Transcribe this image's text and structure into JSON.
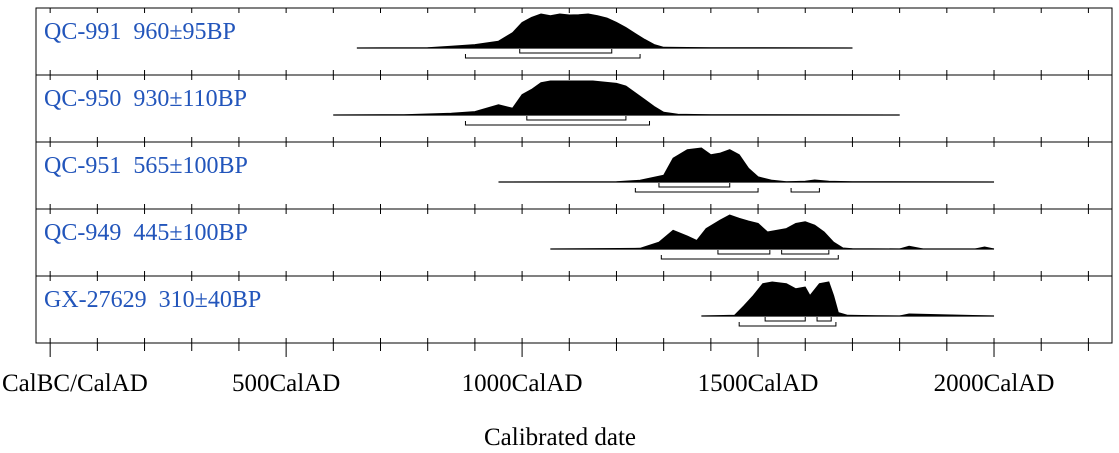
{
  "chart_data": {
    "type": "area",
    "xlabel": "Calibrated date",
    "xlim": [
      -30,
      2250
    ],
    "ticks": [
      {
        "value": 0,
        "label": "CalBC/CalAD"
      },
      {
        "value": 500,
        "label": "500CalAD"
      },
      {
        "value": 1000,
        "label": "1000CalAD"
      },
      {
        "value": 1500,
        "label": "1500CalAD"
      },
      {
        "value": 2000,
        "label": "2000CalAD"
      }
    ],
    "label_color": "#2255bb",
    "series": [
      {
        "name": "QC-991",
        "date": "960±95BP",
        "x": [
          650,
          800,
          850,
          900,
          950,
          980,
          1000,
          1020,
          1040,
          1060,
          1080,
          1100,
          1120,
          1140,
          1160,
          1180,
          1200,
          1220,
          1240,
          1260,
          1280,
          1300,
          1400,
          1700
        ],
        "y": [
          0,
          0.01,
          0.05,
          0.1,
          0.2,
          0.45,
          0.75,
          0.9,
          1.0,
          0.95,
          1.0,
          0.97,
          0.98,
          1.0,
          0.95,
          0.88,
          0.75,
          0.6,
          0.42,
          0.25,
          0.1,
          0.02,
          0.01,
          0
        ],
        "ranges": [
          [
            995,
            1190
          ]
        ],
        "ranges_outer": [
          [
            880,
            1250
          ]
        ]
      },
      {
        "name": "QC-950",
        "date": "930±110BP",
        "x": [
          600,
          750,
          850,
          900,
          950,
          980,
          1000,
          1020,
          1040,
          1060,
          1100,
          1150,
          1200,
          1220,
          1240,
          1260,
          1280,
          1300,
          1330,
          1400,
          1800
        ],
        "y": [
          0,
          0.01,
          0.05,
          0.1,
          0.3,
          0.2,
          0.6,
          0.75,
          0.95,
          1.0,
          1.0,
          1.0,
          0.93,
          0.85,
          0.65,
          0.45,
          0.25,
          0.08,
          0.02,
          0.01,
          0
        ],
        "ranges": [
          [
            1010,
            1220
          ]
        ],
        "ranges_outer": [
          [
            880,
            1270
          ]
        ]
      },
      {
        "name": "QC-951",
        "date": "565±100BP",
        "x": [
          950,
          1200,
          1250,
          1300,
          1320,
          1350,
          1380,
          1400,
          1420,
          1440,
          1460,
          1480,
          1500,
          1530,
          1560,
          1600,
          1620,
          1650,
          1700,
          2000
        ],
        "y": [
          0,
          0.01,
          0.05,
          0.2,
          0.7,
          0.95,
          1.0,
          0.8,
          0.85,
          0.95,
          0.8,
          0.4,
          0.15,
          0.05,
          0.01,
          0.02,
          0.06,
          0.02,
          0.01,
          0
        ],
        "ranges": [
          [
            1290,
            1440
          ]
        ],
        "ranges_outer": [
          [
            1240,
            1500
          ],
          [
            1570,
            1630
          ]
        ]
      },
      {
        "name": "QC-949",
        "date": "445±100BP",
        "x": [
          1060,
          1250,
          1290,
          1320,
          1350,
          1370,
          1390,
          1420,
          1440,
          1460,
          1480,
          1500,
          1520,
          1560,
          1580,
          1600,
          1620,
          1640,
          1660,
          1680,
          1700,
          1800,
          1820,
          1850,
          1960,
          1980,
          2000
        ],
        "y": [
          0,
          0.02,
          0.2,
          0.55,
          0.38,
          0.25,
          0.6,
          0.85,
          1.0,
          0.9,
          0.82,
          0.75,
          0.5,
          0.6,
          0.75,
          0.8,
          0.7,
          0.5,
          0.2,
          0.03,
          0.01,
          0.0,
          0.08,
          0.0,
          0.0,
          0.06,
          0
        ],
        "ranges": [
          [
            1415,
            1525
          ],
          [
            1550,
            1650
          ]
        ],
        "ranges_outer": [
          [
            1295,
            1670
          ]
        ]
      },
      {
        "name": "GX-27629",
        "date": "310±40BP",
        "x": [
          1380,
          1450,
          1470,
          1490,
          1510,
          1530,
          1560,
          1580,
          1600,
          1610,
          1630,
          1650,
          1660,
          1670,
          1690,
          1750,
          1800,
          1820,
          2000
        ],
        "y": [
          0,
          0.02,
          0.3,
          0.6,
          0.95,
          1.0,
          0.95,
          0.8,
          0.85,
          0.6,
          0.95,
          1.0,
          0.6,
          0.1,
          0.02,
          0.01,
          0.0,
          0.06,
          0
        ],
        "ranges": [
          [
            1515,
            1600
          ],
          [
            1625,
            1655
          ]
        ],
        "ranges_outer": [
          [
            1460,
            1665
          ]
        ]
      }
    ]
  }
}
